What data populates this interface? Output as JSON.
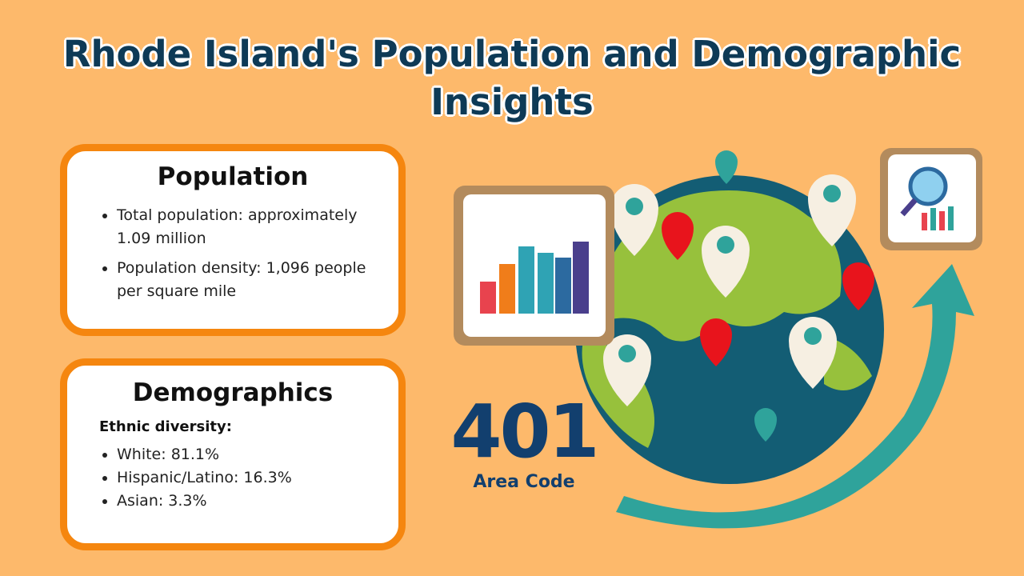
{
  "header": {
    "title": "Rhode Island's Population and Demographic Insights"
  },
  "population": {
    "title": "Population",
    "items": [
      "Total population: approximately 1.09 million",
      "Population density: 1,096 people per square mile"
    ]
  },
  "demographics": {
    "title": "Demographics",
    "subtitle": "Ethnic diversity:",
    "items": [
      "White: 81.1%",
      "Hispanic/Latino: 16.3%",
      "Asian: 3.3%"
    ]
  },
  "area_code": {
    "number": "401",
    "label": "Area Code"
  }
}
